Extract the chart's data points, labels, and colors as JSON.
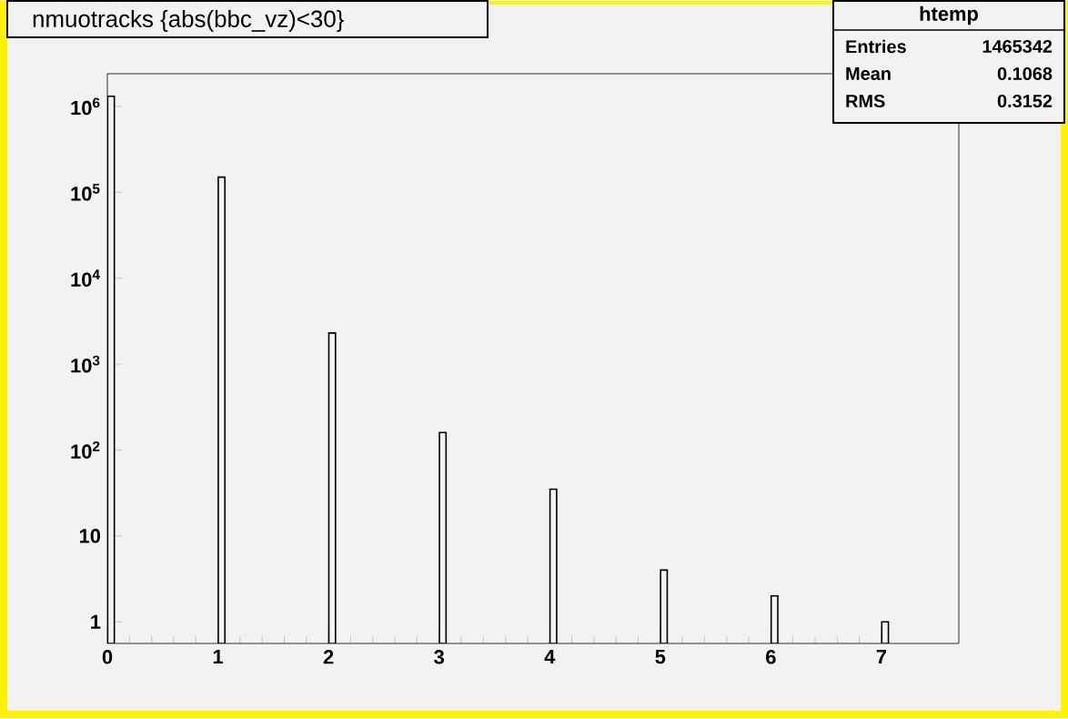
{
  "chart_data": {
    "type": "bar",
    "title": "nmuotracks {abs(bbc_vz)<30}",
    "log": true,
    "x": [
      0,
      1,
      2,
      3,
      4,
      5,
      6,
      7
    ],
    "values": [
      1310000,
      150000,
      2300,
      160,
      35,
      4,
      2,
      1
    ],
    "color": "#000000",
    "xlim": [
      0,
      7.7
    ],
    "xticks": [
      0,
      1,
      2,
      3,
      4,
      5,
      6,
      7
    ],
    "ylim": [
      0.56,
      2400000
    ],
    "yticks": [
      1,
      10,
      {
        "value": 100,
        "label": "10$^{2}$"
      },
      {
        "value": 1000,
        "label": "10$^{3}$"
      },
      {
        "value": 10000,
        "label": "10$^{4}$"
      },
      {
        "value": 100000,
        "label": "10$^{5}$"
      },
      {
        "value": 1000000,
        "label": "10$^{6}$"
      }
    ],
    "annotations": [
      "htemp",
      "Entries",
      "1465342",
      "Mean",
      "0.1068",
      "RMS",
      "0.3152"
    ]
  }
}
